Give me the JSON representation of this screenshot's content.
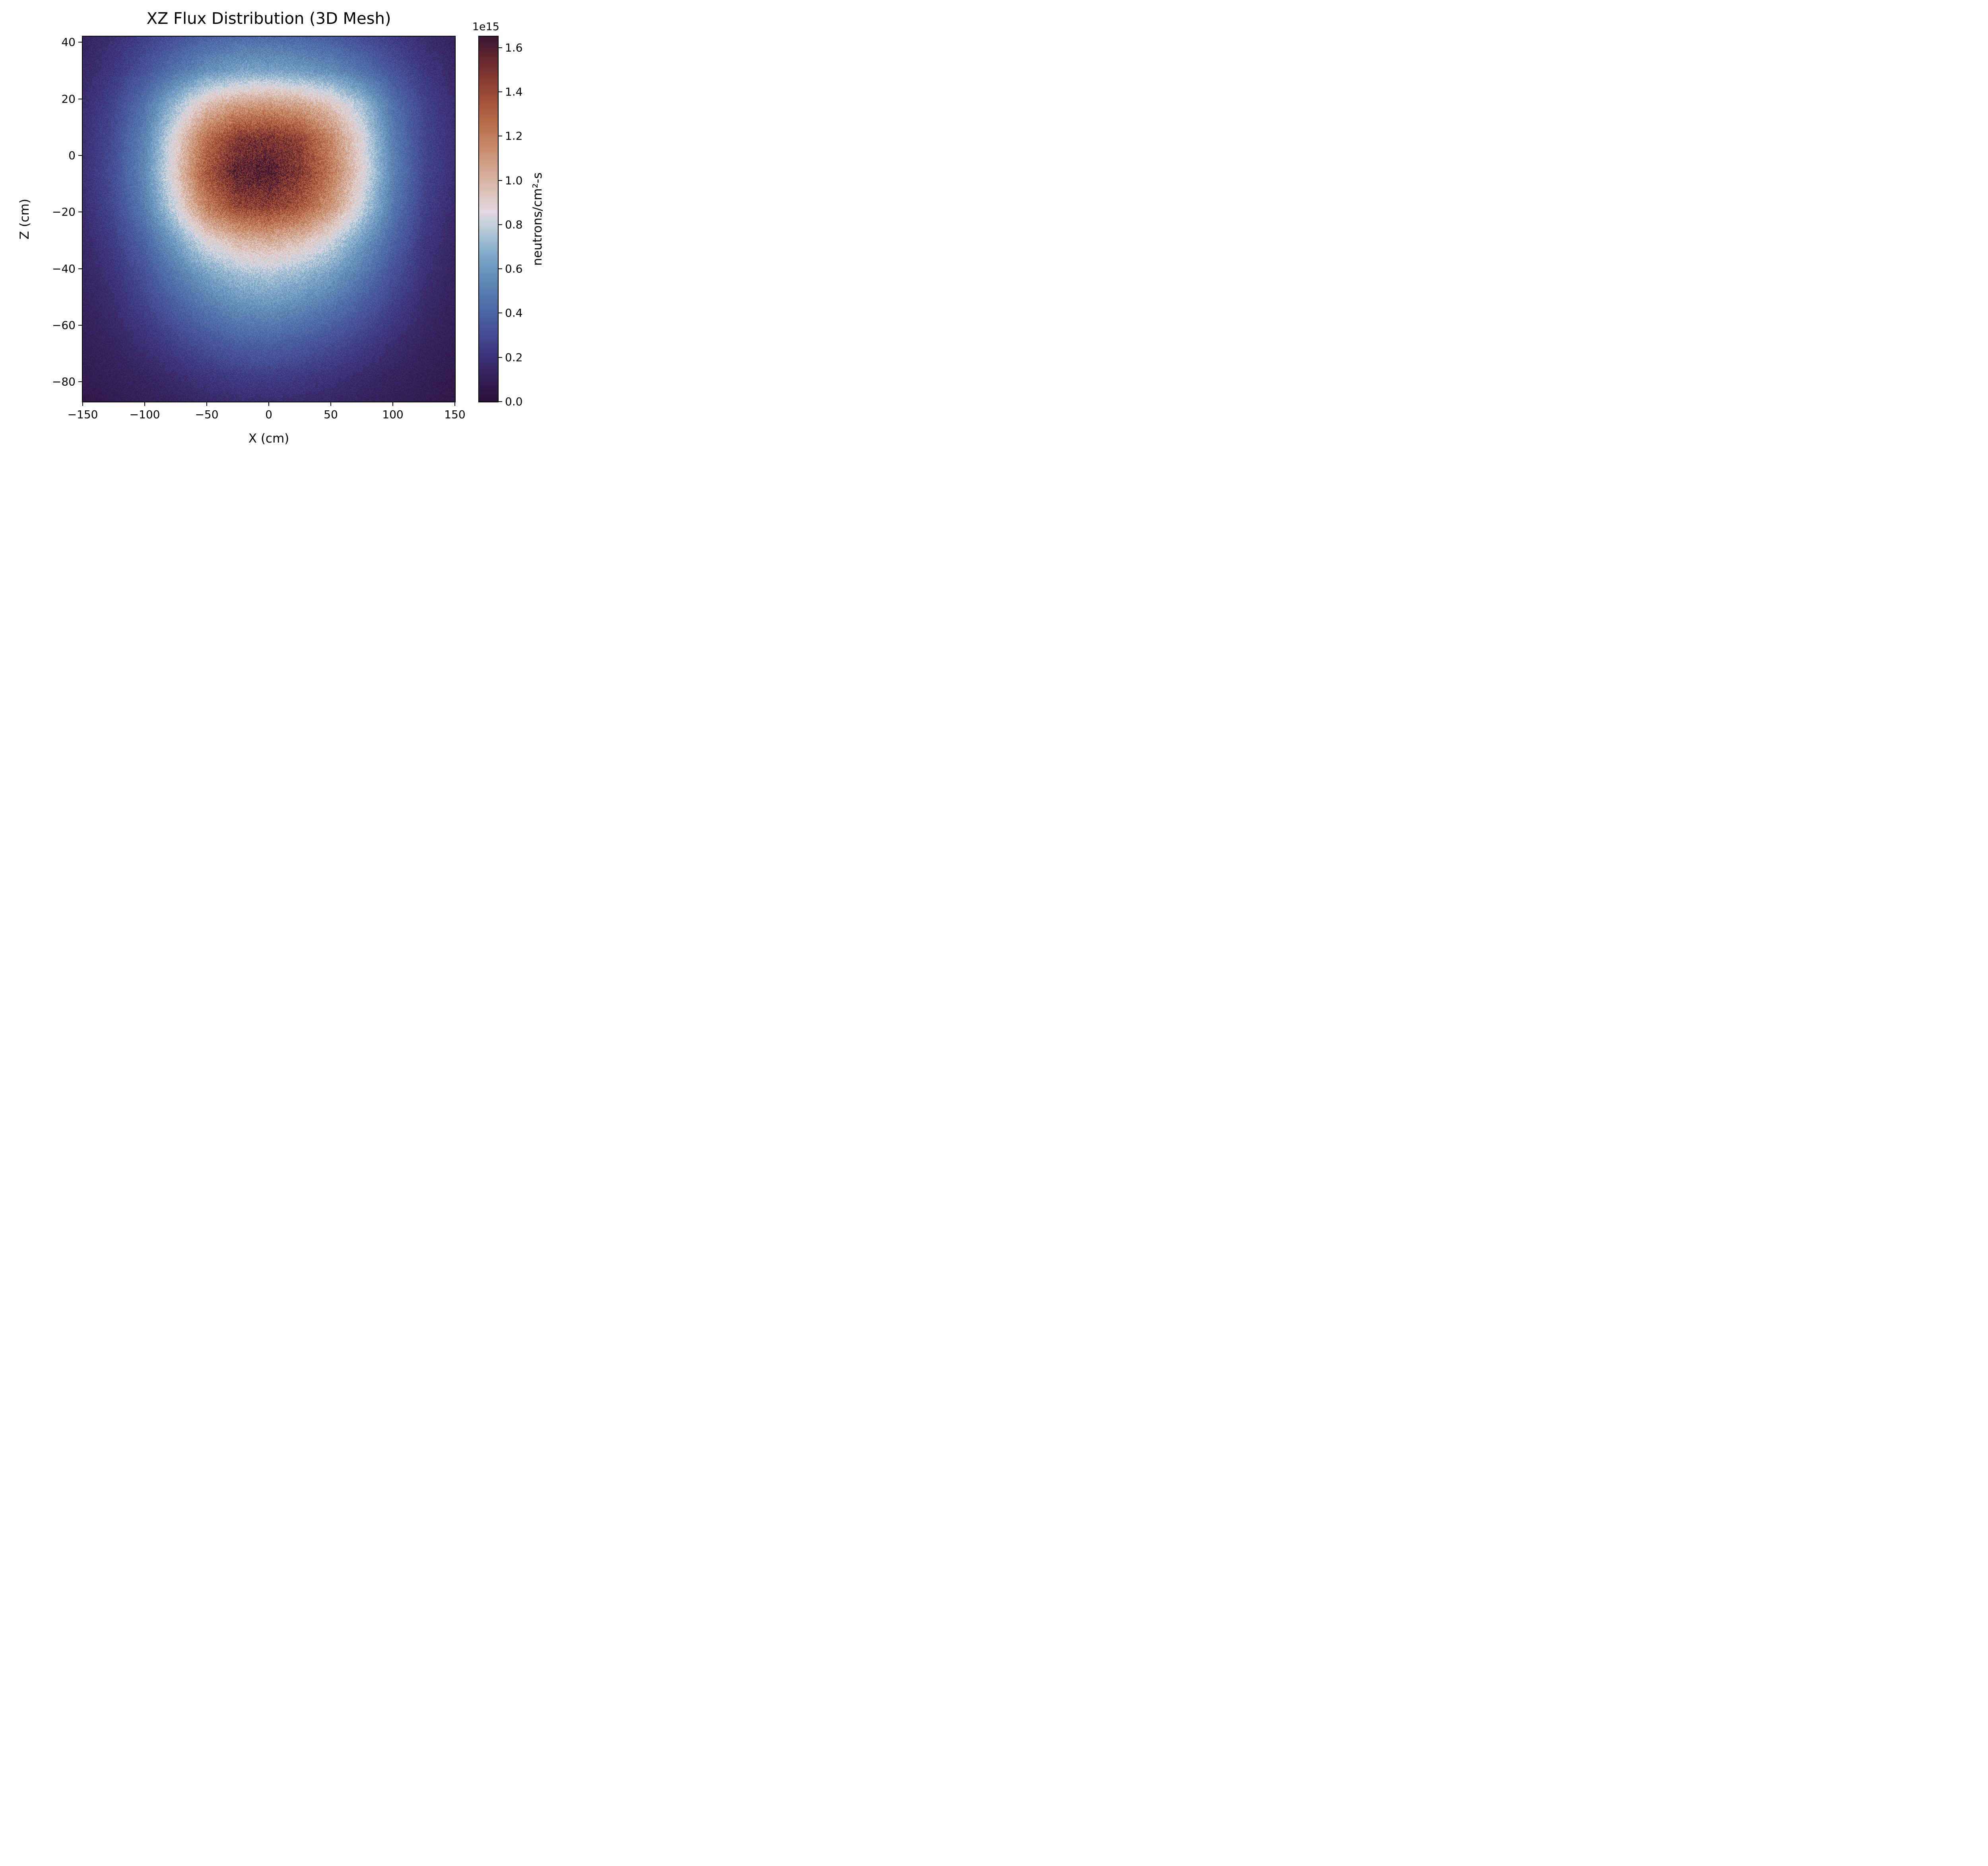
{
  "title": "XZ Flux Distribution (3D Mesh)",
  "xlabel": "X (cm)",
  "ylabel": "Z (cm)",
  "colorbar": {
    "label": "neutrons/cm²-s",
    "scale_label": "1e15",
    "ticks": [
      {
        "v": 0.0,
        "label": "0.0"
      },
      {
        "v": 0.2,
        "label": "0.2"
      },
      {
        "v": 0.4,
        "label": "0.4"
      },
      {
        "v": 0.6,
        "label": "0.6"
      },
      {
        "v": 0.8,
        "label": "0.8"
      },
      {
        "v": 1.0,
        "label": "1.0"
      },
      {
        "v": 1.2,
        "label": "1.2"
      },
      {
        "v": 1.4,
        "label": "1.4"
      },
      {
        "v": 1.6,
        "label": "1.6"
      }
    ]
  },
  "x_ticks": [
    {
      "v": -150,
      "label": "−150"
    },
    {
      "v": -100,
      "label": "−100"
    },
    {
      "v": -50,
      "label": "−50"
    },
    {
      "v": 0,
      "label": "0"
    },
    {
      "v": 50,
      "label": "50"
    },
    {
      "v": 100,
      "label": "100"
    },
    {
      "v": 150,
      "label": "150"
    }
  ],
  "z_ticks": [
    {
      "v": 40,
      "label": "40"
    },
    {
      "v": 20,
      "label": "20"
    },
    {
      "v": 0,
      "label": "0"
    },
    {
      "v": -20,
      "label": "−20"
    },
    {
      "v": -40,
      "label": "−40"
    },
    {
      "v": -60,
      "label": "−60"
    },
    {
      "v": -80,
      "label": "−80"
    }
  ],
  "chart_data": {
    "type": "heatmap",
    "title": "XZ Flux Distribution (3D Mesh)",
    "xlabel": "X (cm)",
    "ylabel": "Z (cm)",
    "units": "neutrons/cm²-s",
    "scale_factor": "1e15",
    "x_range": [
      -150,
      150
    ],
    "z_range": [
      -87,
      42
    ],
    "vmin": 0,
    "vmax": 1650000000000000.0,
    "vmax_1e15": 1.65,
    "colormap": "twilight_shifted",
    "colormap_stops": [
      [
        0.0,
        "#2c123a"
      ],
      [
        0.06,
        "#332058"
      ],
      [
        0.12,
        "#3c3277"
      ],
      [
        0.18,
        "#444b92"
      ],
      [
        0.24,
        "#4b64a4"
      ],
      [
        0.3,
        "#577daf"
      ],
      [
        0.36,
        "#6b96be"
      ],
      [
        0.42,
        "#8cb2cd"
      ],
      [
        0.48,
        "#c0cfda"
      ],
      [
        0.52,
        "#e2d9e1"
      ],
      [
        0.58,
        "#dbc0b4"
      ],
      [
        0.64,
        "#d2a58e"
      ],
      [
        0.7,
        "#c78a69"
      ],
      [
        0.76,
        "#b96f4c"
      ],
      [
        0.82,
        "#a5553b"
      ],
      [
        0.88,
        "#8a3d32"
      ],
      [
        0.94,
        "#66282f"
      ],
      [
        1.0,
        "#3c1733"
      ]
    ],
    "grid_x": [
      -150,
      -125,
      -100,
      -75,
      -50,
      -25,
      0,
      25,
      50,
      75,
      100,
      125,
      150
    ],
    "grid_z": [
      42,
      30,
      18,
      6,
      -6,
      -18,
      -30,
      -42,
      -54,
      -66,
      -78,
      -87
    ],
    "values_1e15": [
      [
        0.12,
        0.18,
        0.25,
        0.32,
        0.38,
        0.42,
        0.42,
        0.4,
        0.36,
        0.3,
        0.24,
        0.17,
        0.12
      ],
      [
        0.15,
        0.22,
        0.33,
        0.46,
        0.57,
        0.63,
        0.64,
        0.61,
        0.55,
        0.45,
        0.33,
        0.22,
        0.15
      ],
      [
        0.17,
        0.27,
        0.45,
        0.72,
        0.97,
        1.08,
        1.1,
        1.06,
        0.95,
        0.74,
        0.45,
        0.27,
        0.17
      ],
      [
        0.18,
        0.3,
        0.52,
        0.88,
        1.25,
        1.47,
        1.5,
        1.42,
        1.17,
        0.86,
        0.5,
        0.28,
        0.18
      ],
      [
        0.18,
        0.31,
        0.54,
        0.92,
        1.35,
        1.58,
        1.6,
        1.48,
        1.22,
        0.89,
        0.52,
        0.28,
        0.18
      ],
      [
        0.17,
        0.29,
        0.5,
        0.83,
        1.2,
        1.42,
        1.45,
        1.35,
        1.12,
        0.81,
        0.48,
        0.26,
        0.16
      ],
      [
        0.15,
        0.24,
        0.4,
        0.63,
        0.87,
        1.0,
        1.04,
        0.97,
        0.83,
        0.62,
        0.4,
        0.22,
        0.14
      ],
      [
        0.13,
        0.2,
        0.32,
        0.48,
        0.63,
        0.73,
        0.76,
        0.71,
        0.62,
        0.48,
        0.32,
        0.19,
        0.12
      ],
      [
        0.11,
        0.17,
        0.26,
        0.37,
        0.47,
        0.55,
        0.57,
        0.53,
        0.46,
        0.36,
        0.25,
        0.16,
        0.1
      ],
      [
        0.09,
        0.13,
        0.19,
        0.26,
        0.33,
        0.38,
        0.39,
        0.36,
        0.31,
        0.25,
        0.18,
        0.12,
        0.08
      ],
      [
        0.07,
        0.1,
        0.13,
        0.17,
        0.21,
        0.24,
        0.25,
        0.23,
        0.2,
        0.16,
        0.12,
        0.09,
        0.06
      ],
      [
        0.05,
        0.07,
        0.1,
        0.12,
        0.15,
        0.17,
        0.17,
        0.16,
        0.14,
        0.12,
        0.09,
        0.07,
        0.05
      ]
    ]
  }
}
